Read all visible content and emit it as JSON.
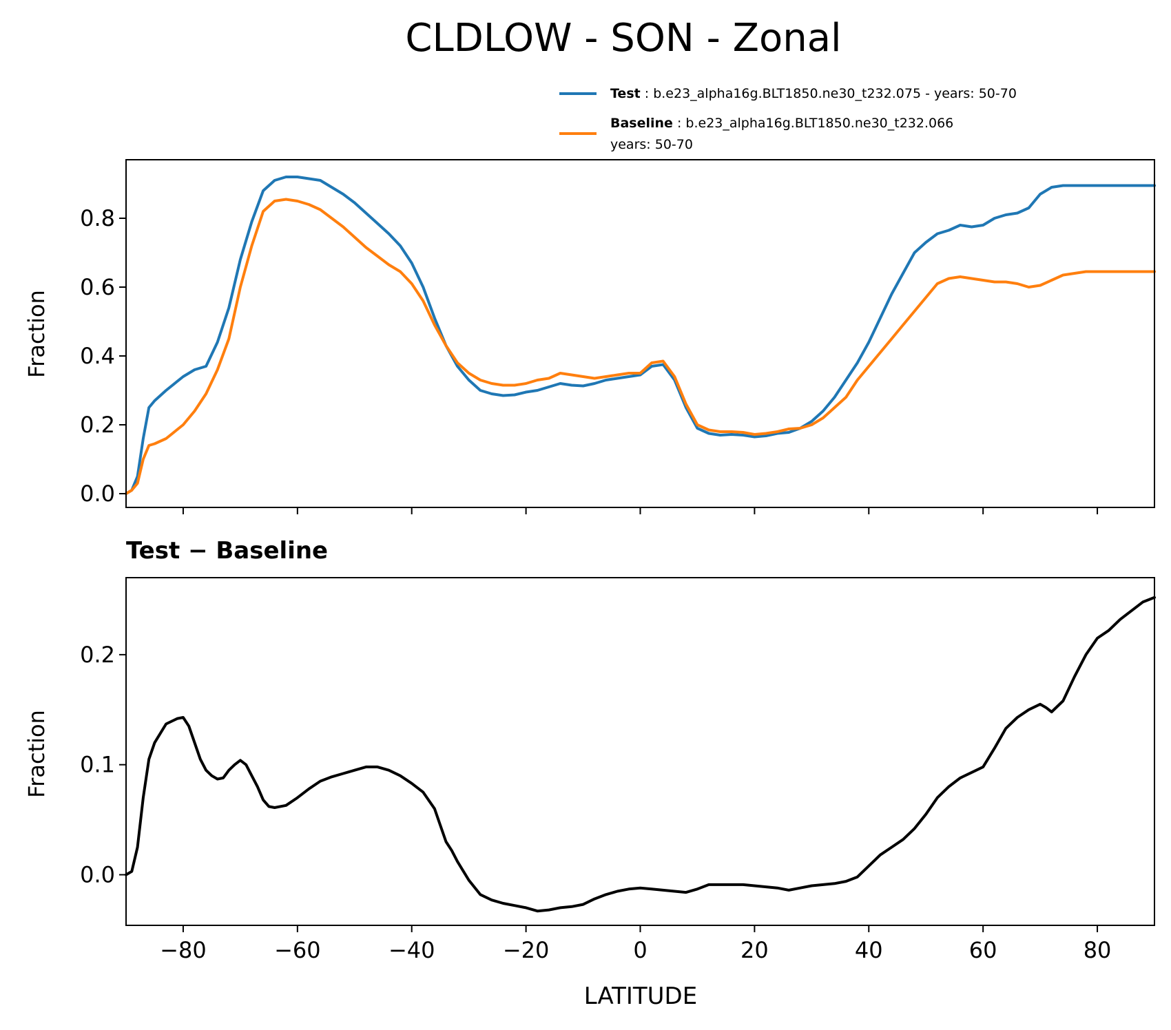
{
  "figure": {
    "title": "CLDLOW - SON - Zonal",
    "legend": {
      "test_label": "Test",
      "test_text": " : b.e23_alpha16g.BLT1850.ne30_t232.075 - years: 50-70",
      "baseline_label": "Baseline",
      "baseline_text": " : b.e23_alpha16g.BLT1850.ne30_t232.066",
      "baseline_text2": "years: 50-70"
    },
    "colors": {
      "test": "#1f77b4",
      "baseline": "#ff7f0e",
      "diff": "#000000"
    }
  },
  "chart_data": [
    {
      "type": "line",
      "title": "",
      "xlabel": "",
      "ylabel": "Fraction",
      "xlim": [
        -90,
        90
      ],
      "ylim": [
        -0.04,
        0.97
      ],
      "yticks": [
        0.0,
        0.2,
        0.4,
        0.6,
        0.8
      ],
      "ytick_labels": [
        "0.0",
        "0.2",
        "0.4",
        "0.6",
        "0.8"
      ],
      "xticks": [
        -80,
        -60,
        -40,
        -20,
        0,
        20,
        40,
        60,
        80
      ],
      "legend_position": "above, right",
      "series": [
        {
          "name": "Test",
          "color": "#1f77b4",
          "x": [
            -90,
            -89,
            -88,
            -87,
            -86,
            -85,
            -83,
            -80,
            -78,
            -76,
            -74,
            -72,
            -70,
            -68,
            -66,
            -64,
            -62,
            -60,
            -58,
            -56,
            -54,
            -52,
            -50,
            -48,
            -46,
            -44,
            -42,
            -40,
            -38,
            -36,
            -34,
            -32,
            -30,
            -28,
            -26,
            -24,
            -22,
            -20,
            -18,
            -16,
            -14,
            -12,
            -10,
            -8,
            -6,
            -4,
            -2,
            0,
            2,
            4,
            6,
            8,
            10,
            12,
            14,
            16,
            18,
            20,
            22,
            24,
            26,
            28,
            30,
            32,
            34,
            36,
            38,
            40,
            42,
            44,
            46,
            48,
            50,
            52,
            54,
            56,
            58,
            60,
            62,
            64,
            66,
            68,
            70,
            72,
            74,
            76,
            78,
            80,
            82,
            84,
            86,
            88,
            90
          ],
          "y": [
            0.0,
            0.01,
            0.05,
            0.16,
            0.25,
            0.27,
            0.3,
            0.34,
            0.36,
            0.37,
            0.44,
            0.54,
            0.68,
            0.79,
            0.88,
            0.91,
            0.92,
            0.92,
            0.915,
            0.91,
            0.89,
            0.87,
            0.845,
            0.815,
            0.785,
            0.755,
            0.72,
            0.67,
            0.6,
            0.51,
            0.43,
            0.37,
            0.33,
            0.3,
            0.29,
            0.285,
            0.287,
            0.295,
            0.3,
            0.31,
            0.32,
            0.315,
            0.313,
            0.32,
            0.33,
            0.335,
            0.34,
            0.345,
            0.37,
            0.375,
            0.33,
            0.25,
            0.19,
            0.175,
            0.17,
            0.172,
            0.17,
            0.165,
            0.168,
            0.175,
            0.178,
            0.19,
            0.21,
            0.24,
            0.28,
            0.33,
            0.38,
            0.44,
            0.51,
            0.58,
            0.64,
            0.7,
            0.73,
            0.755,
            0.765,
            0.78,
            0.775,
            0.78,
            0.8,
            0.81,
            0.815,
            0.83,
            0.87,
            0.89,
            0.895,
            0.895,
            0.895,
            0.895,
            0.895,
            0.895,
            0.895,
            0.895,
            0.895
          ]
        },
        {
          "name": "Baseline",
          "color": "#ff7f0e",
          "x": [
            -90,
            -89,
            -88,
            -87,
            -86,
            -85,
            -83,
            -80,
            -78,
            -76,
            -74,
            -72,
            -70,
            -68,
            -66,
            -64,
            -62,
            -60,
            -58,
            -56,
            -54,
            -52,
            -50,
            -48,
            -46,
            -44,
            -42,
            -40,
            -38,
            -36,
            -34,
            -32,
            -30,
            -28,
            -26,
            -24,
            -22,
            -20,
            -18,
            -16,
            -14,
            -12,
            -10,
            -8,
            -6,
            -4,
            -2,
            0,
            2,
            4,
            6,
            8,
            10,
            12,
            14,
            16,
            18,
            20,
            22,
            24,
            26,
            28,
            30,
            32,
            34,
            36,
            38,
            40,
            42,
            44,
            46,
            48,
            50,
            52,
            54,
            56,
            58,
            60,
            62,
            64,
            66,
            68,
            70,
            72,
            74,
            76,
            78,
            80,
            82,
            84,
            86,
            88,
            90
          ],
          "y": [
            0.0,
            0.01,
            0.03,
            0.1,
            0.14,
            0.145,
            0.16,
            0.2,
            0.24,
            0.29,
            0.36,
            0.45,
            0.6,
            0.72,
            0.82,
            0.85,
            0.855,
            0.85,
            0.84,
            0.825,
            0.8,
            0.775,
            0.745,
            0.715,
            0.69,
            0.665,
            0.645,
            0.61,
            0.56,
            0.49,
            0.43,
            0.38,
            0.35,
            0.33,
            0.32,
            0.315,
            0.315,
            0.32,
            0.33,
            0.335,
            0.35,
            0.345,
            0.34,
            0.335,
            0.34,
            0.345,
            0.35,
            0.35,
            0.38,
            0.385,
            0.34,
            0.26,
            0.2,
            0.185,
            0.18,
            0.18,
            0.178,
            0.172,
            0.175,
            0.18,
            0.188,
            0.19,
            0.2,
            0.22,
            0.25,
            0.28,
            0.33,
            0.37,
            0.41,
            0.45,
            0.49,
            0.53,
            0.57,
            0.61,
            0.625,
            0.63,
            0.625,
            0.62,
            0.615,
            0.615,
            0.61,
            0.6,
            0.605,
            0.62,
            0.635,
            0.64,
            0.645,
            0.645,
            0.645,
            0.645,
            0.645,
            0.645,
            0.645
          ]
        }
      ]
    },
    {
      "type": "line",
      "title": "Test − Baseline",
      "xlabel": "LATITUDE",
      "ylabel": "Fraction",
      "xlim": [
        -90,
        90
      ],
      "ylim": [
        -0.046,
        0.27
      ],
      "yticks": [
        0.0,
        0.1,
        0.2
      ],
      "ytick_labels": [
        "0.0",
        "0.1",
        "0.2"
      ],
      "xticks": [
        -80,
        -60,
        -40,
        -20,
        0,
        20,
        40,
        60,
        80
      ],
      "xtick_labels": [
        "−80",
        "−60",
        "−40",
        "−20",
        "0",
        "20",
        "40",
        "60",
        "80"
      ],
      "series": [
        {
          "name": "Test − Baseline",
          "color": "#000000",
          "x": [
            -90,
            -89,
            -88,
            -87,
            -86,
            -85,
            -83,
            -81,
            -80,
            -79,
            -78,
            -77,
            -76,
            -75,
            -74,
            -73,
            -72,
            -71,
            -70,
            -69,
            -68,
            -67,
            -66,
            -65,
            -64,
            -62,
            -60,
            -58,
            -56,
            -54,
            -52,
            -50,
            -48,
            -46,
            -44,
            -42,
            -40,
            -38,
            -36,
            -35,
            -34,
            -33,
            -32,
            -30,
            -28,
            -26,
            -24,
            -22,
            -20,
            -18,
            -16,
            -14,
            -12,
            -10,
            -8,
            -6,
            -4,
            -2,
            0,
            2,
            4,
            6,
            8,
            10,
            12,
            14,
            16,
            18,
            20,
            22,
            24,
            26,
            28,
            30,
            32,
            34,
            36,
            38,
            40,
            42,
            44,
            46,
            48,
            50,
            52,
            54,
            56,
            58,
            60,
            62,
            64,
            66,
            68,
            70,
            71,
            72,
            74,
            76,
            78,
            80,
            82,
            84,
            86,
            88,
            90
          ],
          "y": [
            0.0,
            0.003,
            0.025,
            0.07,
            0.105,
            0.12,
            0.137,
            0.142,
            0.143,
            0.135,
            0.12,
            0.105,
            0.095,
            0.09,
            0.087,
            0.088,
            0.095,
            0.1,
            0.104,
            0.1,
            0.09,
            0.08,
            0.068,
            0.062,
            0.061,
            0.063,
            0.07,
            0.078,
            0.085,
            0.089,
            0.092,
            0.095,
            0.098,
            0.098,
            0.095,
            0.09,
            0.083,
            0.075,
            0.06,
            0.045,
            0.03,
            0.022,
            0.012,
            -0.005,
            -0.018,
            -0.023,
            -0.026,
            -0.028,
            -0.03,
            -0.033,
            -0.032,
            -0.03,
            -0.029,
            -0.027,
            -0.022,
            -0.018,
            -0.015,
            -0.013,
            -0.012,
            -0.013,
            -0.014,
            -0.015,
            -0.016,
            -0.013,
            -0.009,
            -0.009,
            -0.009,
            -0.009,
            -0.01,
            -0.011,
            -0.012,
            -0.014,
            -0.012,
            -0.01,
            -0.009,
            -0.008,
            -0.006,
            -0.002,
            0.008,
            0.018,
            0.025,
            0.032,
            0.042,
            0.055,
            0.07,
            0.08,
            0.088,
            0.093,
            0.098,
            0.115,
            0.133,
            0.143,
            0.15,
            0.155,
            0.152,
            0.148,
            0.158,
            0.18,
            0.2,
            0.215,
            0.222,
            0.232,
            0.24,
            0.248,
            0.252
          ]
        }
      ]
    }
  ]
}
